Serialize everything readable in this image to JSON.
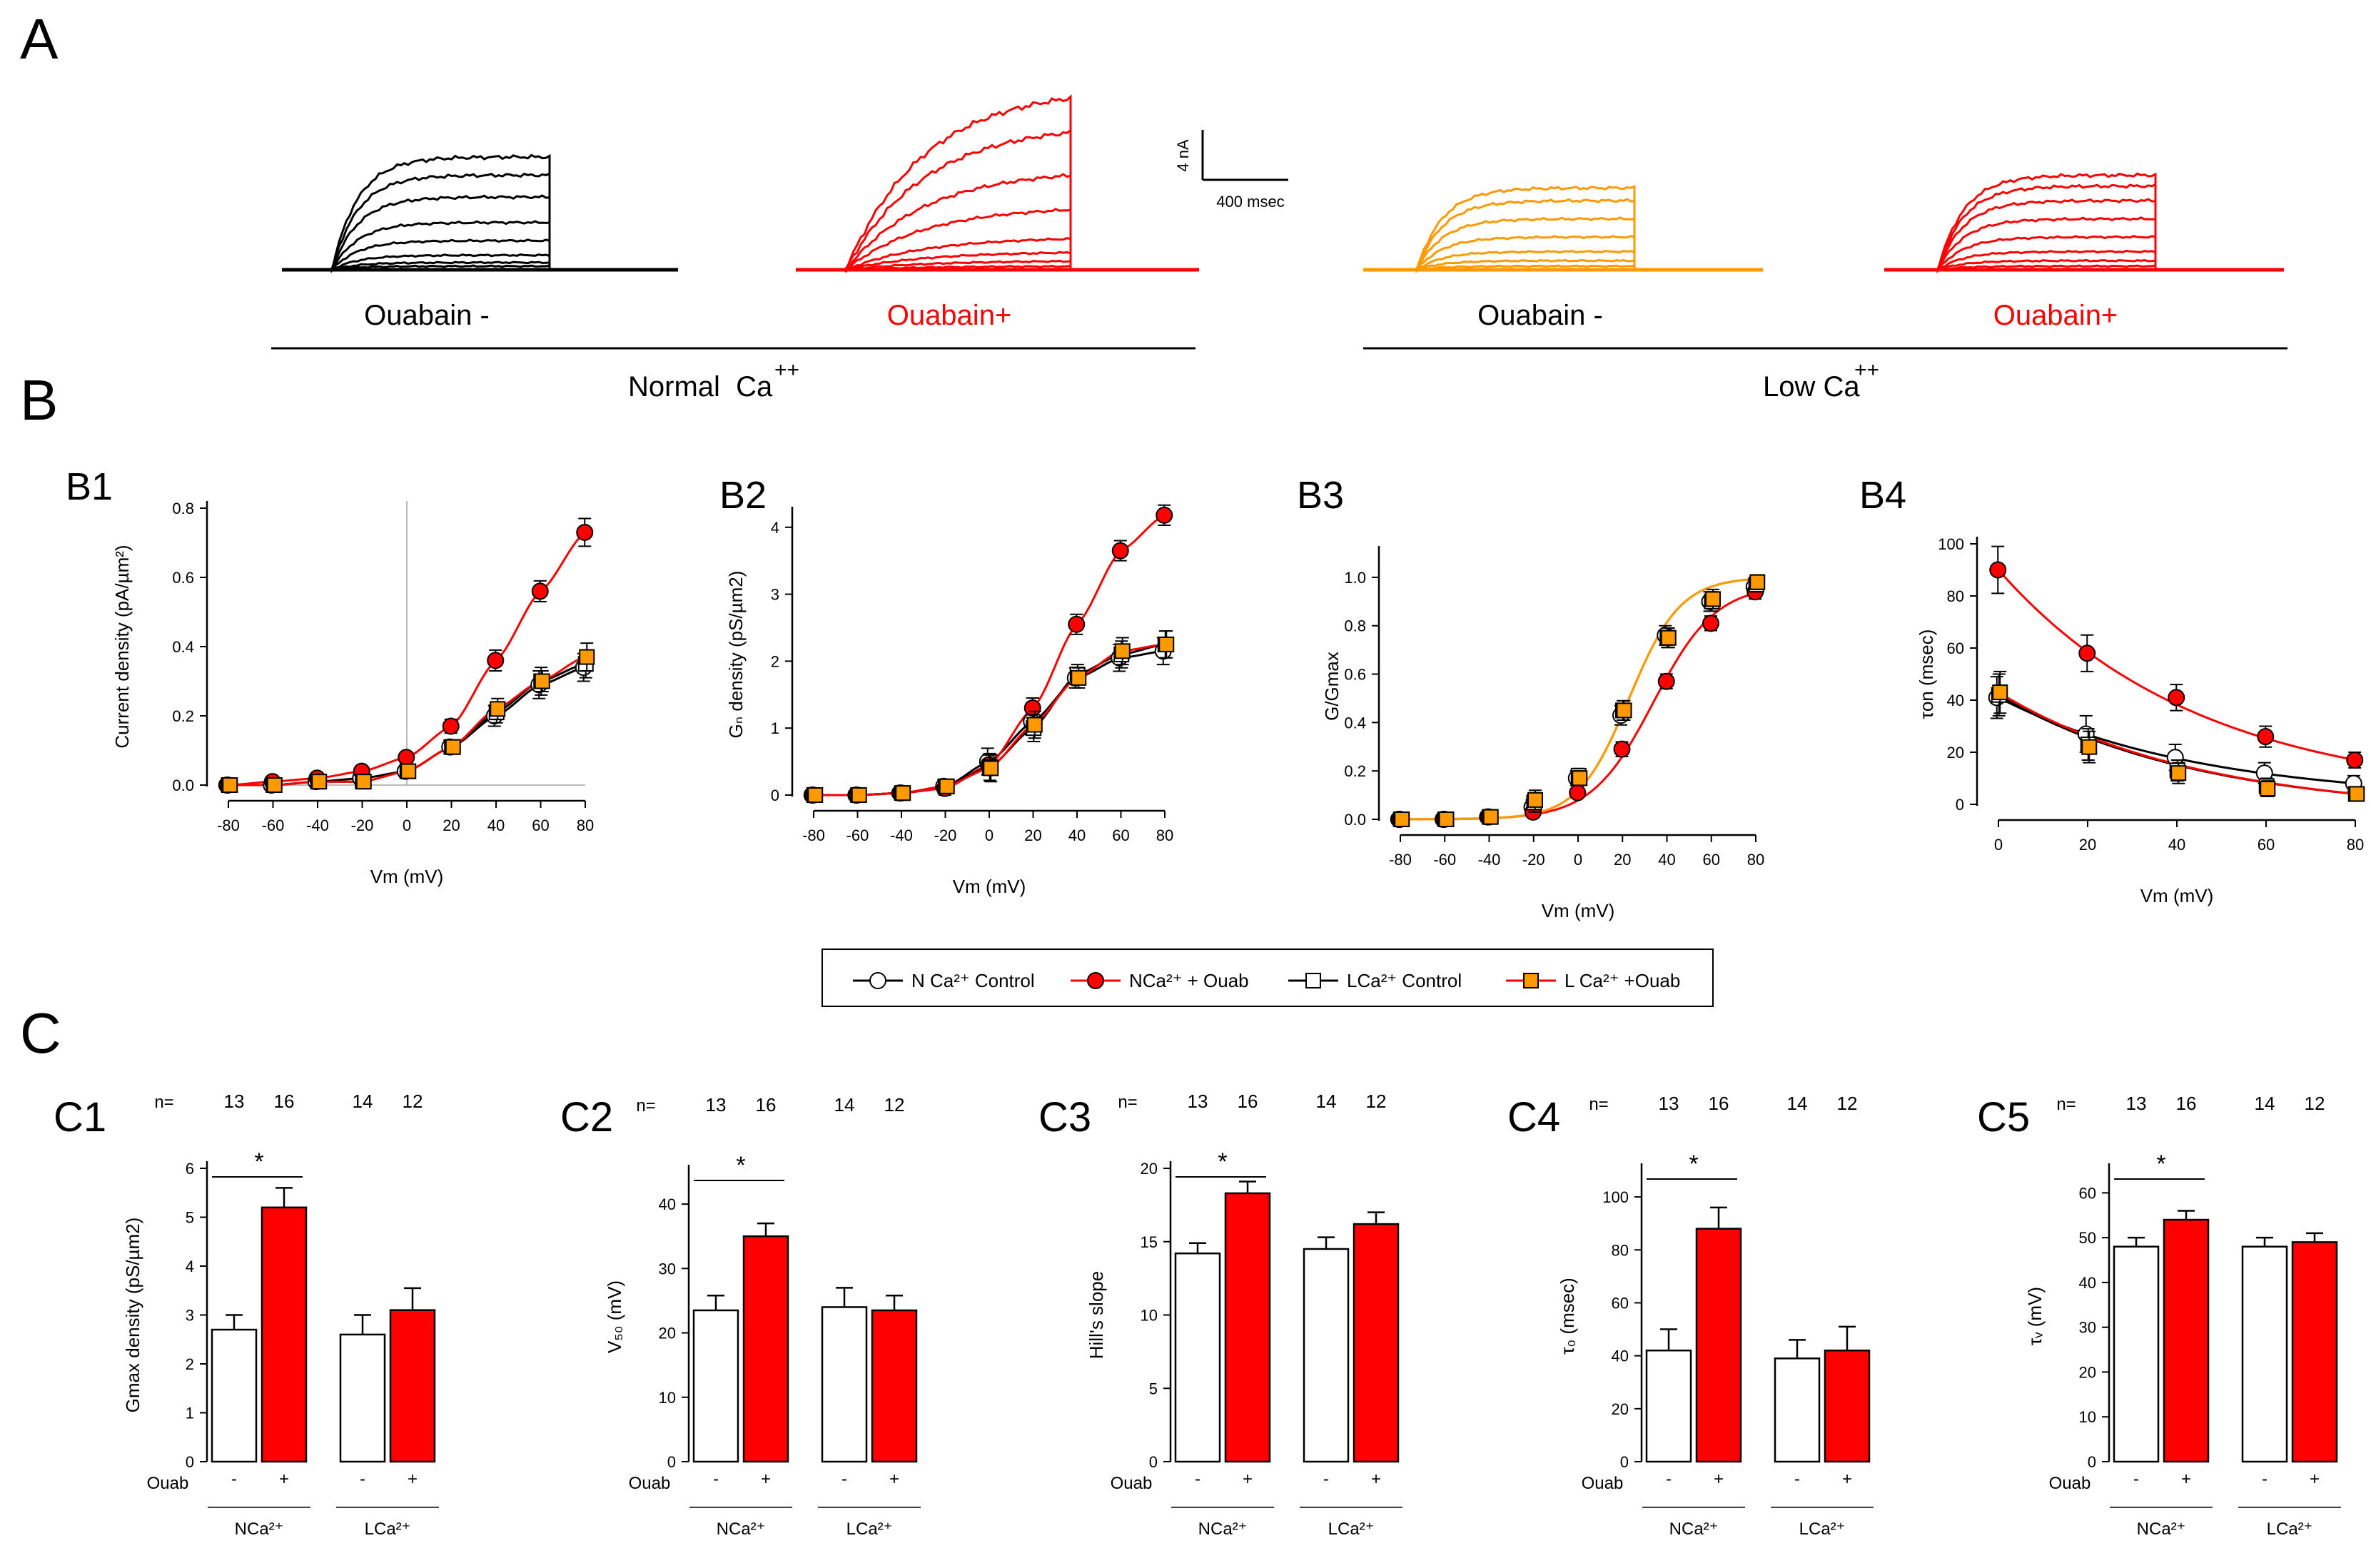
{
  "panels": {
    "A": "A",
    "B": "B",
    "C": "C",
    "B1": "B1",
    "B2": "B2",
    "B3": "B3",
    "B4": "B4",
    "C1": "C1",
    "C2": "C2",
    "C3": "C3",
    "C4": "C4",
    "C5": "C5"
  },
  "traces": {
    "groups": [
      {
        "label": "Ouabain -",
        "color": "#000000",
        "key": "nca_control",
        "levels": [
          0.02,
          0.04,
          0.08,
          0.16,
          0.26,
          0.4,
          0.52,
          0.62
        ]
      },
      {
        "label": "Ouabain+",
        "color": "#ff0000",
        "key": "nca_ouab",
        "levels": [
          0.02,
          0.05,
          0.1,
          0.18,
          0.35,
          0.55,
          0.8,
          1.0
        ]
      },
      {
        "label": "Ouabain -",
        "color": "#ff9900",
        "key": "lca_control",
        "levels": [
          0.02,
          0.05,
          0.1,
          0.18,
          0.28,
          0.38,
          0.45
        ]
      },
      {
        "label": "Ouabain+",
        "color": "#ff0000",
        "key": "lca_ouab",
        "levels": [
          0.02,
          0.05,
          0.1,
          0.18,
          0.28,
          0.38,
          0.46,
          0.52
        ]
      }
    ],
    "normal_label": "Normal  Ca",
    "low_label": "Low Ca",
    "superscript": "++",
    "scale_current": "4 nA",
    "scale_time": "400 msec"
  },
  "legend": {
    "items": [
      {
        "label": "N Ca²⁺ Control",
        "marker": "circle",
        "fill": "#ffffff",
        "line": "#000000"
      },
      {
        "label": "NCa²⁺ + Ouab",
        "marker": "circle",
        "fill": "#ff0000",
        "line": "#ff0000"
      },
      {
        "label": "LCa²⁺ Control",
        "marker": "square",
        "fill": "#ffffff",
        "line": "#000000"
      },
      {
        "label": "L Ca²⁺ +Ouab",
        "marker": "square",
        "fill": "#ff9900",
        "line": "#ff0000"
      }
    ]
  },
  "chart_data": [
    {
      "id": "B1",
      "type": "line",
      "xlabel": "Vm (mV)",
      "ylabel": "Current density (pA/µm²)",
      "x": [
        -80,
        -60,
        -40,
        -20,
        0,
        20,
        40,
        60,
        80
      ],
      "xlim": [
        -80,
        80
      ],
      "ylim": [
        0,
        0.8
      ],
      "xticks": [
        -80,
        -60,
        -40,
        -20,
        0,
        20,
        40,
        60,
        80
      ],
      "yticks": [
        0.0,
        0.2,
        0.4,
        0.6,
        0.8
      ],
      "tick_labels_y": [
        "0.0",
        "0.2",
        "0.4",
        "0.6",
        "0.8"
      ],
      "zero_lines": true,
      "series": [
        {
          "name": "N Ca2+ Control",
          "values": [
            0,
            0,
            0.01,
            0.02,
            0.04,
            0.11,
            0.2,
            0.29,
            0.34
          ],
          "err": [
            0.01,
            0.01,
            0.01,
            0.01,
            0.01,
            0.02,
            0.03,
            0.04,
            0.04
          ],
          "marker": "circle",
          "fill": "#ffffff",
          "line": "#000000"
        },
        {
          "name": "NCa2+ + Ouab",
          "values": [
            0,
            0.01,
            0.02,
            0.04,
            0.08,
            0.17,
            0.36,
            0.56,
            0.73
          ],
          "err": [
            0.01,
            0.01,
            0.01,
            0.01,
            0.01,
            0.02,
            0.03,
            0.03,
            0.04
          ],
          "marker": "circle",
          "fill": "#ff0000",
          "line": "#ff0000"
        },
        {
          "name": "LCa2+ Control",
          "values": [
            0,
            0,
            0.01,
            0.01,
            0.04,
            0.11,
            0.21,
            0.3,
            0.35
          ],
          "err": [
            0.01,
            0.01,
            0.01,
            0.01,
            0.01,
            0.02,
            0.03,
            0.04,
            0.04
          ],
          "marker": "square",
          "fill": "#ffffff",
          "line": "#000000"
        },
        {
          "name": "L Ca2+ +Ouab",
          "values": [
            0,
            0,
            0.01,
            0.01,
            0.04,
            0.11,
            0.22,
            0.3,
            0.37
          ],
          "err": [
            0.01,
            0.01,
            0.01,
            0.01,
            0.01,
            0.02,
            0.03,
            0.03,
            0.04
          ],
          "marker": "square",
          "fill": "#ff9900",
          "line": "#ff0000"
        }
      ]
    },
    {
      "id": "B2",
      "type": "line",
      "xlabel": "Vm (mV)",
      "ylabel": "Gₙ density (pS/µm2)",
      "x": [
        -80,
        -60,
        -40,
        -20,
        0,
        20,
        40,
        60,
        80
      ],
      "xlim": [
        -80,
        80
      ],
      "ylim": [
        0,
        4.2
      ],
      "xticks": [
        -80,
        -60,
        -40,
        -20,
        0,
        20,
        40,
        60,
        80
      ],
      "yticks": [
        0,
        1,
        2,
        3,
        4
      ],
      "tick_labels_y": [
        "0",
        "1",
        "2",
        "3",
        "4"
      ],
      "series": [
        {
          "name": "N Ca2+ Control",
          "values": [
            0,
            0,
            0.03,
            0.13,
            0.5,
            1.1,
            1.75,
            2.05,
            2.15
          ],
          "err": [
            0.03,
            0.03,
            0.04,
            0.1,
            0.2,
            0.2,
            0.15,
            0.2,
            0.2
          ],
          "marker": "circle",
          "fill": "#ffffff",
          "line": "#000000"
        },
        {
          "name": "NCa2+ + Ouab",
          "values": [
            0,
            0,
            0.03,
            0.1,
            0.45,
            1.3,
            2.55,
            3.65,
            4.18
          ],
          "err": [
            0.03,
            0.03,
            0.04,
            0.1,
            0.15,
            0.15,
            0.15,
            0.15,
            0.15
          ],
          "marker": "circle",
          "fill": "#ff0000",
          "line": "#ff0000"
        },
        {
          "name": "LCa2+ Control",
          "values": [
            0,
            0,
            0.03,
            0.13,
            0.42,
            1.0,
            1.8,
            2.1,
            2.25
          ],
          "err": [
            0.03,
            0.03,
            0.04,
            0.1,
            0.2,
            0.2,
            0.15,
            0.2,
            0.2
          ],
          "marker": "square",
          "fill": "#ffffff",
          "line": "#000000"
        },
        {
          "name": "L Ca2+ +Ouab",
          "values": [
            0,
            0,
            0.03,
            0.13,
            0.4,
            1.05,
            1.75,
            2.15,
            2.25
          ],
          "err": [
            0.03,
            0.03,
            0.04,
            0.1,
            0.2,
            0.2,
            0.15,
            0.2,
            0.2
          ],
          "marker": "square",
          "fill": "#ff9900",
          "line": "#ff0000"
        }
      ]
    },
    {
      "id": "B3",
      "type": "line",
      "xlabel": "Vm (mV)",
      "ylabel": "G/Gmax",
      "x": [
        -80,
        -60,
        -40,
        -20,
        0,
        20,
        40,
        60,
        80
      ],
      "xlim": [
        -80,
        80
      ],
      "ylim": [
        0,
        1.1
      ],
      "xticks": [
        -80,
        -60,
        -40,
        -20,
        0,
        20,
        40,
        60,
        80
      ],
      "yticks": [
        0.0,
        0.2,
        0.4,
        0.6,
        0.8,
        1.0
      ],
      "tick_labels_y": [
        "0.0",
        "0.2",
        "0.4",
        "0.6",
        "0.8",
        "1.0"
      ],
      "series": [
        {
          "name": "N Ca2+ Control",
          "values": [
            0,
            0,
            0.01,
            0.05,
            0.17,
            0.43,
            0.76,
            0.9,
            0.96
          ],
          "err": [
            0.01,
            0.01,
            0.01,
            0.03,
            0.03,
            0.04,
            0.04,
            0.04,
            0.03
          ],
          "marker": "circle",
          "fill": "#ffffff",
          "line": "#000000"
        },
        {
          "name": "NCa2+ + Ouab",
          "values": [
            0,
            0,
            0.01,
            0.03,
            0.11,
            0.29,
            0.57,
            0.81,
            0.94
          ],
          "err": [
            0.01,
            0.01,
            0.01,
            0.02,
            0.02,
            0.03,
            0.03,
            0.03,
            0.03
          ],
          "marker": "circle",
          "fill": "#ff0000",
          "line": "#ff0000"
        },
        {
          "name": "LCa2+ Control",
          "values": [
            0,
            0,
            0.01,
            0.07,
            0.18,
            0.45,
            0.75,
            0.9,
            0.97
          ],
          "err": [
            0.01,
            0.01,
            0.01,
            0.04,
            0.03,
            0.04,
            0.04,
            0.04,
            0.03
          ],
          "marker": "square",
          "fill": "#ffffff",
          "line": "#000000"
        },
        {
          "name": "L Ca2+ +Ouab",
          "values": [
            0,
            0,
            0.01,
            0.08,
            0.17,
            0.45,
            0.75,
            0.91,
            0.98
          ],
          "err": [
            0.01,
            0.01,
            0.01,
            0.04,
            0.03,
            0.04,
            0.04,
            0.04,
            0.03
          ],
          "marker": "square",
          "fill": "#ff9900",
          "line": "#ff0000"
        }
      ],
      "fit_colors": [
        "#ff9900",
        "#ff0000"
      ]
    },
    {
      "id": "B4",
      "type": "line",
      "xlabel": "Vm (mV)",
      "ylabel": "τon  (msec)",
      "x": [
        0,
        20,
        40,
        60,
        80
      ],
      "xlim": [
        0,
        80
      ],
      "ylim": [
        0,
        100
      ],
      "xticks": [
        0,
        20,
        40,
        60,
        80
      ],
      "yticks": [
        0,
        20,
        40,
        60,
        80,
        100
      ],
      "tick_labels_y": [
        "0",
        "20",
        "40",
        "60",
        "80",
        "100"
      ],
      "series": [
        {
          "name": "N Ca2+ Control",
          "values": [
            41,
            27,
            18,
            12,
            8
          ],
          "err": [
            8,
            7,
            5,
            4,
            3
          ],
          "marker": "circle",
          "fill": "#ffffff",
          "line": "#000000"
        },
        {
          "name": "NCa2+ + Ouab",
          "values": [
            90,
            58,
            41,
            26,
            17
          ],
          "err": [
            9,
            7,
            5,
            4,
            3
          ],
          "marker": "circle",
          "fill": "#ff0000",
          "line": "#ff0000"
        },
        {
          "name": "LCa2+ Control",
          "values": [
            42,
            23,
            13,
            7,
            4
          ],
          "err": [
            8,
            6,
            4,
            3,
            2
          ],
          "marker": "square",
          "fill": "#ffffff",
          "line": "#000000"
        },
        {
          "name": "L Ca2+ +Ouab",
          "values": [
            43,
            22,
            12,
            6,
            4
          ],
          "err": [
            8,
            6,
            4,
            3,
            2
          ],
          "marker": "square",
          "fill": "#ff9900",
          "line": "#ff0000"
        }
      ]
    },
    {
      "id": "C1",
      "type": "bar",
      "ylabel": "Gmax density  (pS/µm2)",
      "ylim": [
        0,
        6
      ],
      "yticks": [
        0,
        1,
        2,
        3,
        4,
        5,
        6
      ],
      "tick_labels_y": [
        "0",
        "1",
        "2",
        "3",
        "4",
        "5",
        "6"
      ],
      "values": [
        2.7,
        5.2,
        2.6,
        3.1
      ],
      "err": [
        0.3,
        0.4,
        0.4,
        0.45
      ],
      "colors": [
        "#ffffff",
        "#ff0000",
        "#ffffff",
        "#ff0000"
      ],
      "signs": [
        "-",
        "+",
        "-",
        "+"
      ],
      "n_values": [
        "13",
        "16",
        "14",
        "12"
      ],
      "n_label": "n=",
      "ouab_label": "Ouab",
      "groups": [
        "NCa²⁺",
        "LCa²⁺"
      ],
      "sig": "*"
    },
    {
      "id": "C2",
      "type": "bar",
      "ylabel": "V₅₀ (mV)",
      "ylim": [
        0,
        45
      ],
      "yticks": [
        0,
        10,
        20,
        30,
        40
      ],
      "tick_labels_y": [
        "0",
        "10",
        "20",
        "30",
        "40"
      ],
      "values": [
        23.5,
        35,
        24,
        23.5
      ],
      "err": [
        2.3,
        2,
        3,
        2.3
      ],
      "colors": [
        "#ffffff",
        "#ff0000",
        "#ffffff",
        "#ff0000"
      ],
      "signs": [
        "-",
        "+",
        "-",
        "+"
      ],
      "n_values": [
        "13",
        "16",
        "14",
        "12"
      ],
      "n_label": "n=",
      "ouab_label": "Ouab",
      "groups": [
        "NCa²⁺",
        "LCa²⁺"
      ],
      "sig": "*"
    },
    {
      "id": "C3",
      "type": "bar",
      "ylabel": "Hill's slope",
      "ylim": [
        0,
        20
      ],
      "yticks": [
        0,
        5,
        10,
        15,
        20
      ],
      "tick_labels_y": [
        "0",
        "5",
        "10",
        "15",
        "20"
      ],
      "values": [
        14.2,
        18.3,
        14.5,
        16.2
      ],
      "err": [
        0.7,
        0.8,
        0.8,
        0.8
      ],
      "colors": [
        "#ffffff",
        "#ff0000",
        "#ffffff",
        "#ff0000"
      ],
      "signs": [
        "-",
        "+",
        "-",
        "+"
      ],
      "n_values": [
        "13",
        "16",
        "14",
        "12"
      ],
      "n_label": "n=",
      "ouab_label": "Ouab",
      "groups": [
        "NCa²⁺",
        "LCa²⁺"
      ],
      "sig": "*"
    },
    {
      "id": "C4",
      "type": "bar",
      "ylabel": "τ₀ (msec)",
      "ylim": [
        0,
        110
      ],
      "yticks": [
        0,
        20,
        40,
        60,
        80,
        100
      ],
      "tick_labels_y": [
        "0",
        "20",
        "40",
        "60",
        "80",
        "100"
      ],
      "values": [
        42,
        88,
        39,
        42
      ],
      "err": [
        8,
        8,
        7,
        9
      ],
      "colors": [
        "#ffffff",
        "#ff0000",
        "#ffffff",
        "#ff0000"
      ],
      "signs": [
        "-",
        "+",
        "-",
        "+"
      ],
      "n_values": [
        "13",
        "16",
        "14",
        "12"
      ],
      "n_label": "n=",
      "ouab_label": "Ouab",
      "groups": [
        "NCa²⁺",
        "LCa²⁺"
      ],
      "sig": "*"
    },
    {
      "id": "C5",
      "type": "bar",
      "ylabel": "τᵥ (mV)",
      "ylim": [
        0,
        65
      ],
      "yticks": [
        0,
        10,
        20,
        30,
        40,
        50,
        60
      ],
      "tick_labels_y": [
        "0",
        "10",
        "20",
        "30",
        "40",
        "50",
        "60"
      ],
      "values": [
        48,
        54,
        48,
        49
      ],
      "err": [
        2,
        2,
        2,
        2
      ],
      "colors": [
        "#ffffff",
        "#ff0000",
        "#ffffff",
        "#ff0000"
      ],
      "signs": [
        "-",
        "+",
        "-",
        "+"
      ],
      "n_values": [
        "13",
        "16",
        "14",
        "12"
      ],
      "n_label": "n=",
      "ouab_label": "Ouab",
      "groups": [
        "NCa²⁺",
        "LCa²⁺"
      ],
      "sig": "*"
    }
  ]
}
